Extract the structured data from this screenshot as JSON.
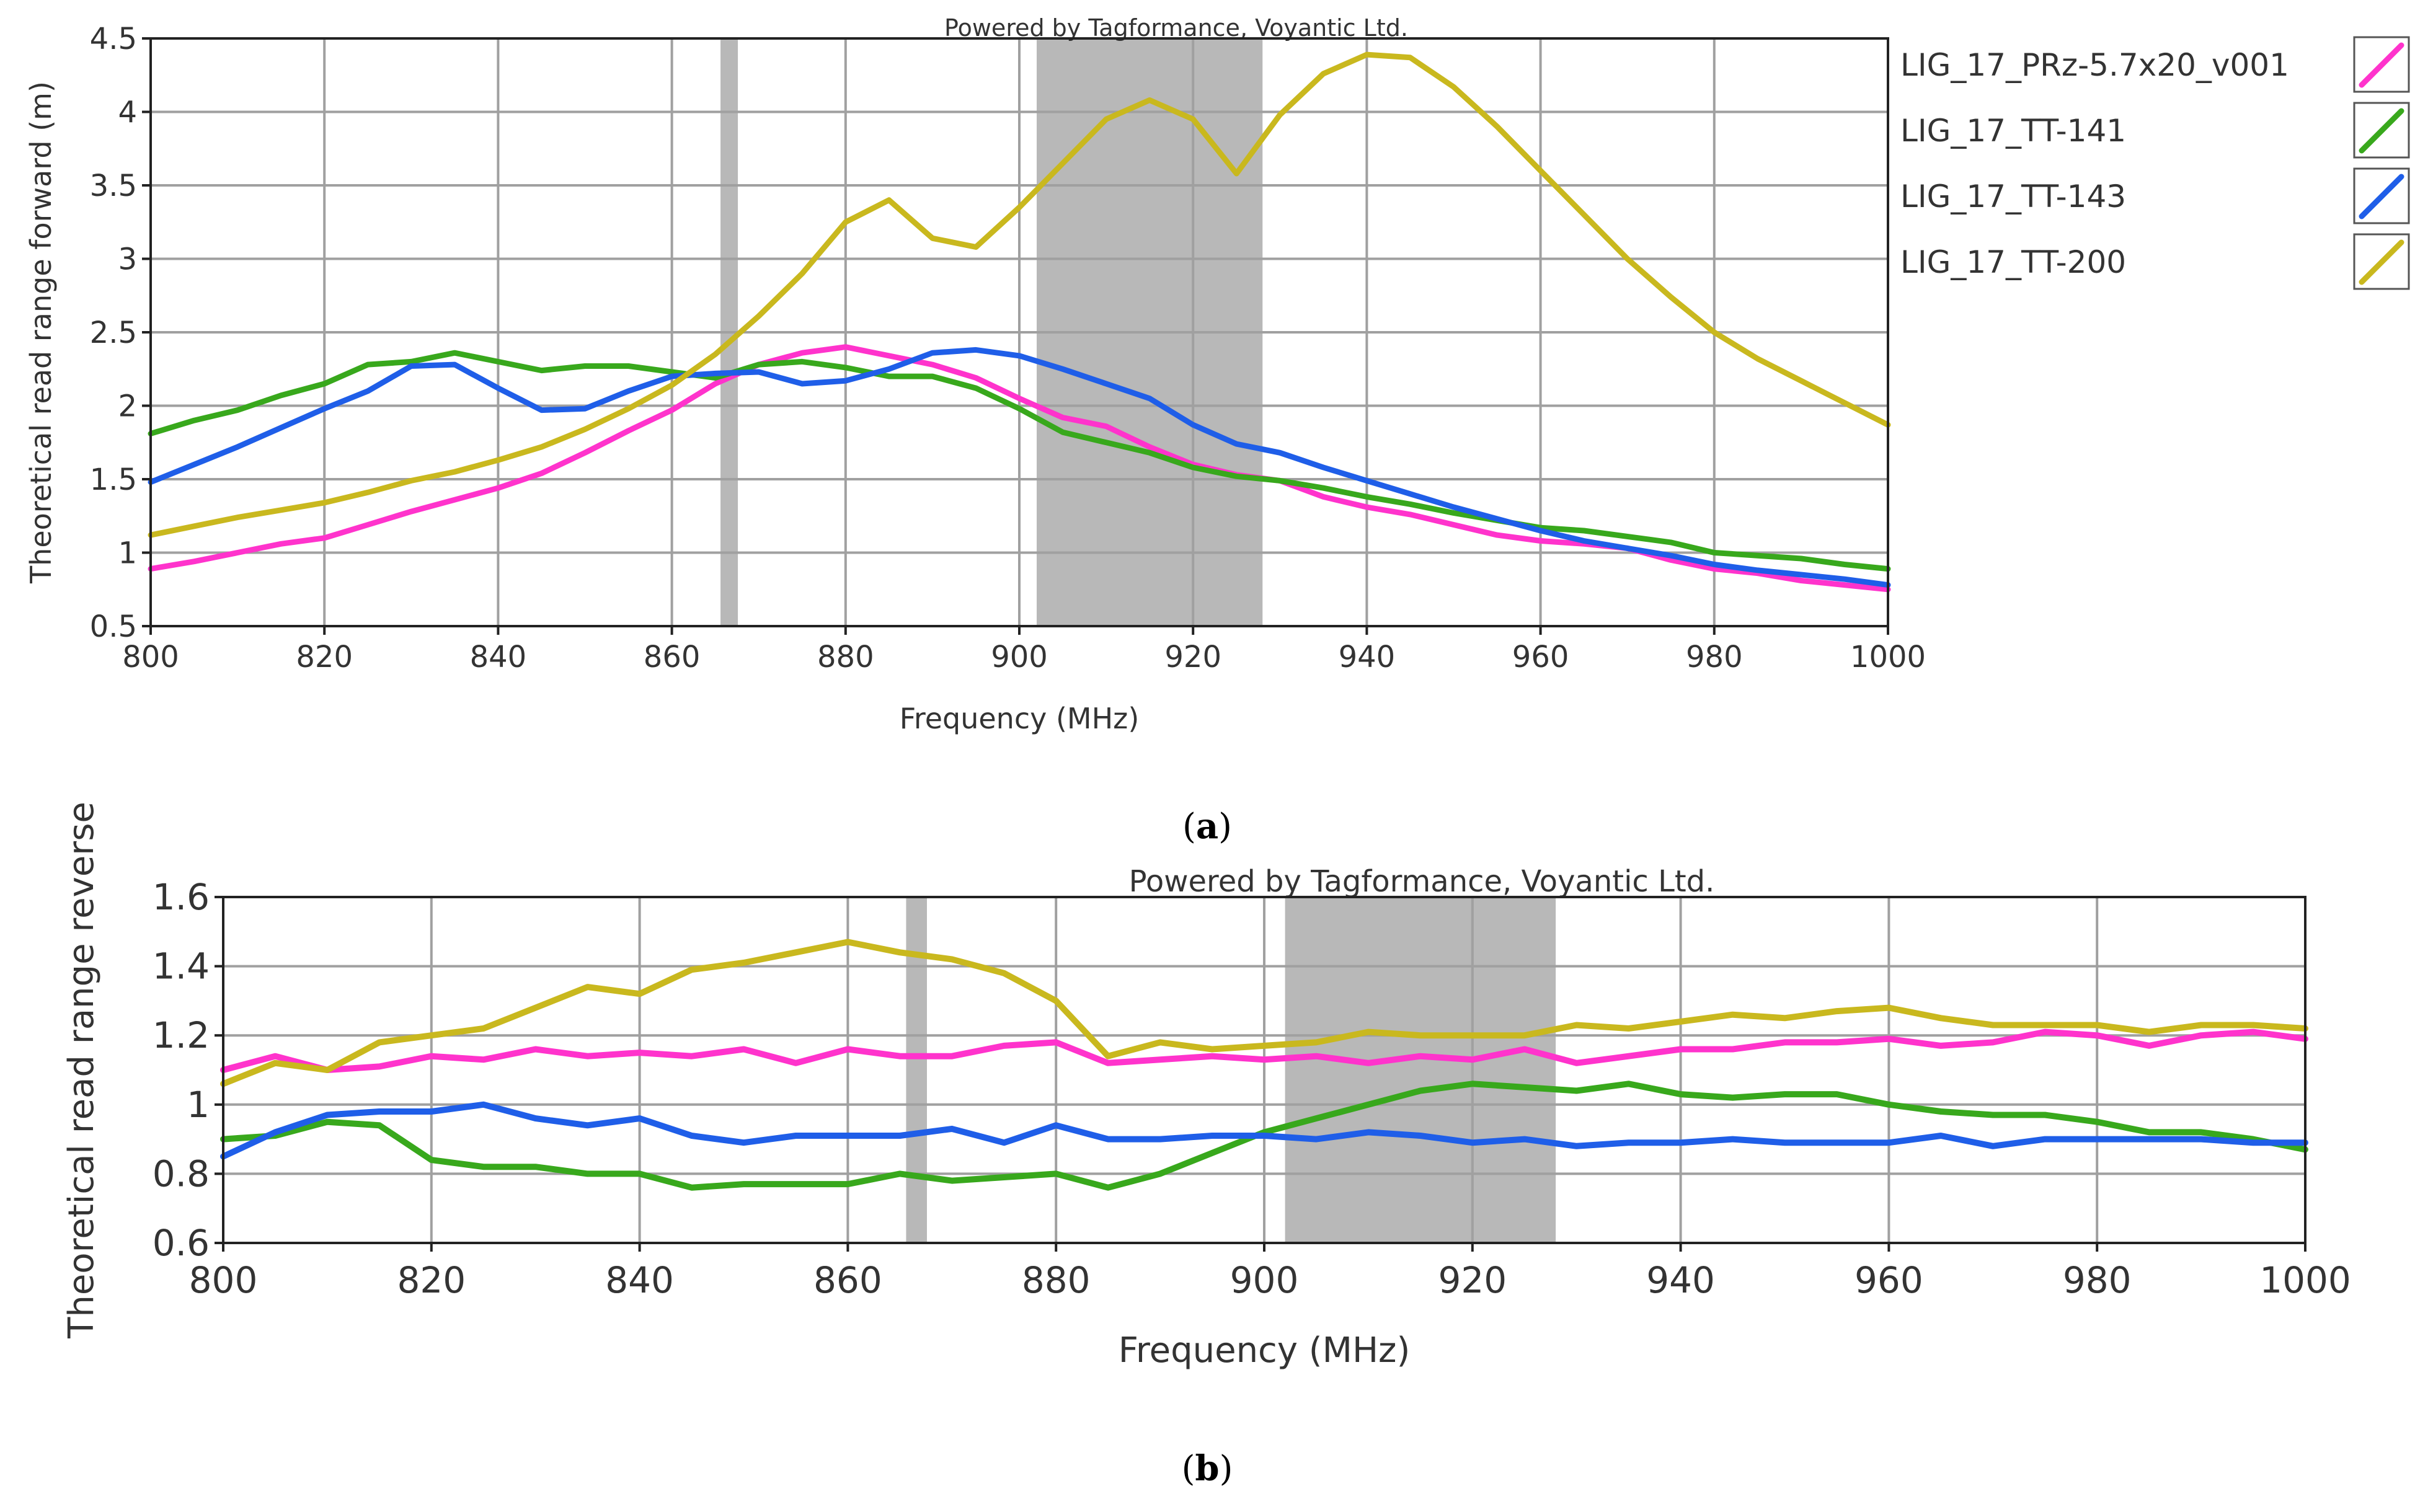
{
  "panel_a_label": {
    "open": "(",
    "letter": "a",
    "close": ")"
  },
  "panel_b_label": {
    "open": "(",
    "letter": "b",
    "close": ")"
  },
  "colors": {
    "pink": "#ff33cc",
    "green": "#38a81c",
    "blue": "#1f5ee8",
    "olive": "#c9b81e",
    "band": "#b8b8b8",
    "grid": "#a0a0a0"
  },
  "chart_data": [
    {
      "type": "line",
      "title": "Powered by Tagformance, Voyantic Ltd.",
      "xlabel": "Frequency (MHz)",
      "ylabel": "Theoretical read range forward (m)",
      "xlim": [
        800,
        1000
      ],
      "ylim": [
        0.5,
        4.5
      ],
      "xticks": [
        800,
        820,
        840,
        860,
        880,
        900,
        920,
        940,
        960,
        980,
        1000
      ],
      "yticks": [
        0.5,
        1,
        1.5,
        2,
        2.5,
        3,
        3.5,
        4,
        4.5
      ],
      "ytick_labels": [
        "0.5",
        "1",
        "1.5",
        "2",
        "2.5",
        "3",
        "3.5",
        "4",
        "4.5"
      ],
      "grid": true,
      "legend_position": "right",
      "shaded_bands_mhz": [
        [
          865.6,
          867.6
        ],
        [
          902,
          928
        ]
      ],
      "x": [
        800,
        805,
        810,
        815,
        820,
        825,
        830,
        835,
        840,
        845,
        850,
        855,
        860,
        865,
        870,
        875,
        880,
        885,
        890,
        895,
        900,
        905,
        910,
        915,
        920,
        925,
        930,
        935,
        940,
        945,
        950,
        955,
        960,
        965,
        970,
        975,
        980,
        985,
        990,
        995,
        1000
      ],
      "series": [
        {
          "name": "LIG_17_PRz-5.7x20_v001",
          "color": "#ff33cc",
          "values": [
            0.89,
            0.94,
            1.0,
            1.06,
            1.1,
            1.19,
            1.28,
            1.36,
            1.44,
            1.54,
            1.68,
            1.83,
            1.97,
            2.15,
            2.28,
            2.36,
            2.4,
            2.34,
            2.28,
            2.19,
            2.05,
            1.92,
            1.86,
            1.72,
            1.6,
            1.53,
            1.49,
            1.38,
            1.31,
            1.26,
            1.19,
            1.12,
            1.08,
            1.06,
            1.03,
            0.95,
            0.89,
            0.86,
            0.81,
            0.78,
            0.75
          ]
        },
        {
          "name": "LIG_17_TT-141",
          "color": "#38a81c",
          "values": [
            1.81,
            1.9,
            1.97,
            2.07,
            2.15,
            2.28,
            2.3,
            2.36,
            2.3,
            2.24,
            2.27,
            2.27,
            2.23,
            2.19,
            2.28,
            2.3,
            2.26,
            2.2,
            2.2,
            2.12,
            1.98,
            1.82,
            1.75,
            1.68,
            1.58,
            1.52,
            1.49,
            1.44,
            1.38,
            1.33,
            1.27,
            1.22,
            1.17,
            1.15,
            1.11,
            1.07,
            1.0,
            0.98,
            0.96,
            0.92,
            0.89
          ]
        },
        {
          "name": "LIG_17_TT-143",
          "color": "#1f5ee8",
          "values": [
            1.48,
            1.6,
            1.72,
            1.85,
            1.98,
            2.1,
            2.27,
            2.28,
            2.12,
            1.97,
            1.98,
            2.1,
            2.2,
            2.22,
            2.23,
            2.15,
            2.17,
            2.25,
            2.36,
            2.38,
            2.34,
            2.25,
            2.15,
            2.05,
            1.87,
            1.74,
            1.68,
            1.58,
            1.49,
            1.4,
            1.31,
            1.23,
            1.15,
            1.08,
            1.03,
            0.98,
            0.92,
            0.88,
            0.85,
            0.82,
            0.78
          ]
        },
        {
          "name": "LIG_17_TT-200",
          "color": "#c9b81e",
          "values": [
            1.12,
            1.18,
            1.24,
            1.29,
            1.34,
            1.41,
            1.49,
            1.55,
            1.63,
            1.72,
            1.84,
            1.98,
            2.14,
            2.35,
            2.61,
            2.9,
            3.25,
            3.4,
            3.14,
            3.08,
            3.35,
            3.65,
            3.95,
            4.08,
            3.95,
            3.58,
            3.98,
            4.26,
            4.39,
            4.37,
            4.17,
            3.9,
            3.6,
            3.3,
            3.0,
            2.74,
            2.5,
            2.32,
            2.17,
            2.02,
            1.87
          ]
        }
      ]
    },
    {
      "type": "line",
      "title": "Powered by Tagformance, Voyantic Ltd.",
      "xlabel": "Frequency (MHz)",
      "ylabel": "Theoretical read range reverse",
      "xlim": [
        800,
        1000
      ],
      "ylim": [
        0.6,
        1.6
      ],
      "xticks": [
        800,
        820,
        840,
        860,
        880,
        900,
        920,
        940,
        960,
        980,
        1000
      ],
      "yticks": [
        0.6,
        0.8,
        1.0,
        1.2,
        1.4,
        1.6
      ],
      "ytick_labels": [
        "0.6",
        "0.8",
        "1",
        "1.2",
        "1.4",
        "1.6"
      ],
      "grid": true,
      "shaded_bands_mhz": [
        [
          865.6,
          867.6
        ],
        [
          902,
          928
        ]
      ],
      "x": [
        800,
        805,
        810,
        815,
        820,
        825,
        830,
        835,
        840,
        845,
        850,
        855,
        860,
        865,
        870,
        875,
        880,
        885,
        890,
        895,
        900,
        905,
        910,
        915,
        920,
        925,
        930,
        935,
        940,
        945,
        950,
        955,
        960,
        965,
        970,
        975,
        980,
        985,
        990,
        995,
        1000
      ],
      "series": [
        {
          "name": "LIG_17_PRz-5.7x20_v001",
          "color": "#ff33cc",
          "values": [
            1.1,
            1.14,
            1.1,
            1.11,
            1.14,
            1.13,
            1.16,
            1.14,
            1.15,
            1.14,
            1.16,
            1.12,
            1.16,
            1.14,
            1.14,
            1.17,
            1.18,
            1.12,
            1.13,
            1.14,
            1.13,
            1.14,
            1.12,
            1.14,
            1.13,
            1.16,
            1.12,
            1.14,
            1.16,
            1.16,
            1.18,
            1.18,
            1.19,
            1.17,
            1.18,
            1.21,
            1.2,
            1.17,
            1.2,
            1.21,
            1.19
          ]
        },
        {
          "name": "LIG_17_TT-141",
          "color": "#38a81c",
          "values": [
            0.9,
            0.91,
            0.95,
            0.94,
            0.84,
            0.82,
            0.82,
            0.8,
            0.8,
            0.76,
            0.77,
            0.77,
            0.77,
            0.8,
            0.78,
            0.79,
            0.8,
            0.76,
            0.8,
            0.86,
            0.92,
            0.96,
            1.0,
            1.04,
            1.06,
            1.05,
            1.04,
            1.06,
            1.03,
            1.02,
            1.03,
            1.03,
            1.0,
            0.98,
            0.97,
            0.97,
            0.95,
            0.92,
            0.92,
            0.9,
            0.87
          ]
        },
        {
          "name": "LIG_17_TT-143",
          "color": "#1f5ee8",
          "values": [
            0.85,
            0.92,
            0.97,
            0.98,
            0.98,
            1.0,
            0.96,
            0.94,
            0.96,
            0.91,
            0.89,
            0.91,
            0.91,
            0.91,
            0.93,
            0.89,
            0.94,
            0.9,
            0.9,
            0.91,
            0.91,
            0.9,
            0.92,
            0.91,
            0.89,
            0.9,
            0.88,
            0.89,
            0.89,
            0.9,
            0.89,
            0.89,
            0.89,
            0.91,
            0.88,
            0.9,
            0.9,
            0.9,
            0.9,
            0.89,
            0.89
          ]
        },
        {
          "name": "LIG_17_TT-200",
          "color": "#c9b81e",
          "values": [
            1.06,
            1.12,
            1.1,
            1.18,
            1.2,
            1.22,
            1.28,
            1.34,
            1.32,
            1.39,
            1.41,
            1.44,
            1.47,
            1.44,
            1.42,
            1.38,
            1.3,
            1.14,
            1.18,
            1.16,
            1.17,
            1.18,
            1.21,
            1.2,
            1.2,
            1.2,
            1.23,
            1.22,
            1.24,
            1.26,
            1.25,
            1.27,
            1.28,
            1.25,
            1.23,
            1.23,
            1.23,
            1.21,
            1.23,
            1.23,
            1.22
          ]
        }
      ]
    }
  ]
}
